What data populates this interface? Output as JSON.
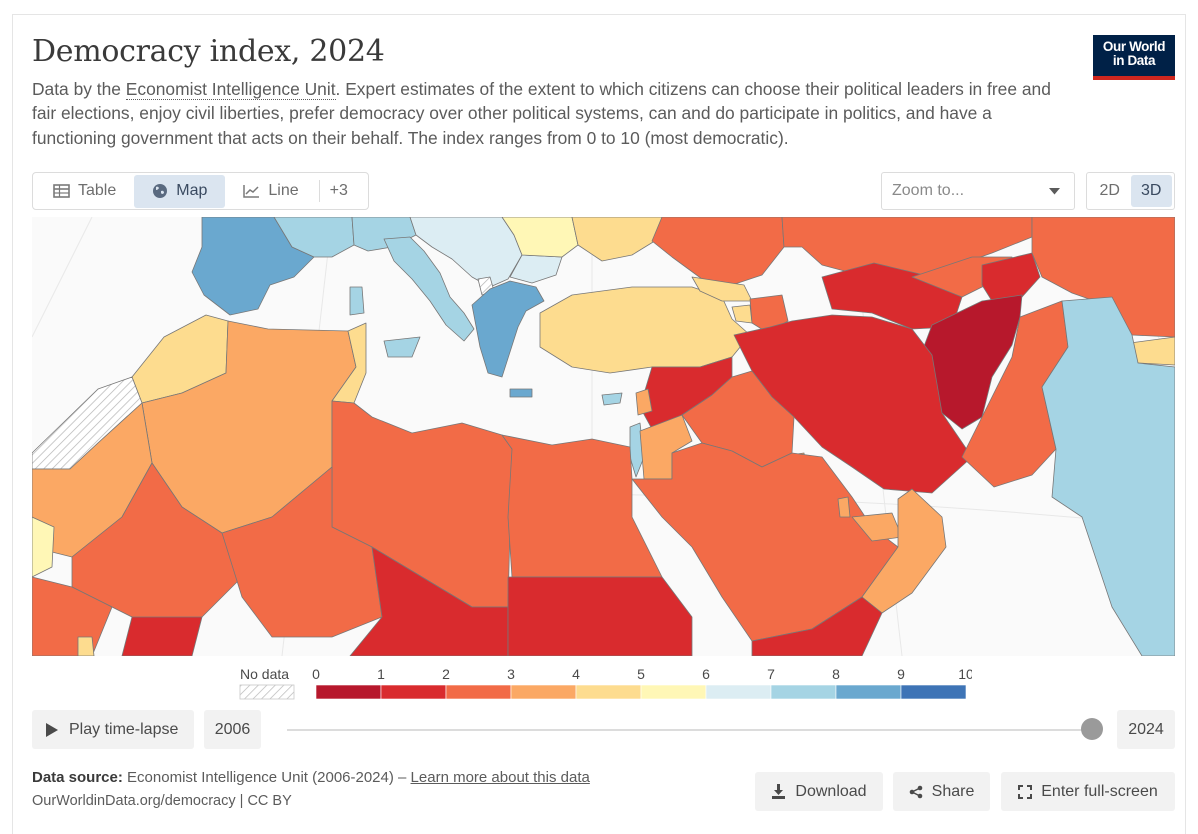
{
  "title": "Democracy index, 2024",
  "subtitle": {
    "before": "Data by the ",
    "link": "Economist Intelligence Unit",
    "after": ". Expert estimates of the extent to which citizens can choose their political leaders in free and fair elections, enjoy civil liberties, prefer democracy over other political systems, can and do participate in politics, and have a functioning government that acts on their behalf. The index ranges from 0 to 10 (most democratic)."
  },
  "logo": {
    "line1": "Our World",
    "line2": "in Data"
  },
  "tabs": [
    {
      "label": "Table",
      "icon": "table-icon"
    },
    {
      "label": "Map",
      "icon": "globe-icon",
      "active": true
    },
    {
      "label": "Line",
      "icon": "line-chart-icon"
    }
  ],
  "tabs_more": "+3",
  "zoom_placeholder": "Zoom to...",
  "projection": {
    "options": [
      "2D",
      "3D"
    ],
    "selected": "3D"
  },
  "legend": {
    "no_data_label": "No data",
    "ticks": [
      "0",
      "1",
      "2",
      "3",
      "4",
      "5",
      "6",
      "7",
      "8",
      "9",
      "10"
    ],
    "bins": [
      {
        "from": 0,
        "to": 1,
        "color": "#b7182c"
      },
      {
        "from": 1,
        "to": 2,
        "color": "#d92b2e"
      },
      {
        "from": 2,
        "to": 3,
        "color": "#f26b47"
      },
      {
        "from": 3,
        "to": 4,
        "color": "#fba864"
      },
      {
        "from": 4,
        "to": 5,
        "color": "#fddc8f"
      },
      {
        "from": 5,
        "to": 6,
        "color": "#fff7b6"
      },
      {
        "from": 6,
        "to": 7,
        "color": "#dcedf3"
      },
      {
        "from": 7,
        "to": 8,
        "color": "#a5d4e4"
      },
      {
        "from": 8,
        "to": 9,
        "color": "#6aa8cf"
      },
      {
        "from": 9,
        "to": 10,
        "color": "#3e74b6"
      }
    ]
  },
  "timeline": {
    "play_label": "Play time-lapse",
    "start_year": "2006",
    "end_year": "2024",
    "current_year": 2024
  },
  "footer": {
    "source_label": "Data source:",
    "source_text": " Economist Intelligence Unit (2006-2024) – ",
    "learn_more": "Learn more about this data",
    "site": "OurWorldinData.org/democracy | CC BY",
    "download": "Download",
    "share": "Share",
    "fullscreen": "Enter full-screen"
  }
}
